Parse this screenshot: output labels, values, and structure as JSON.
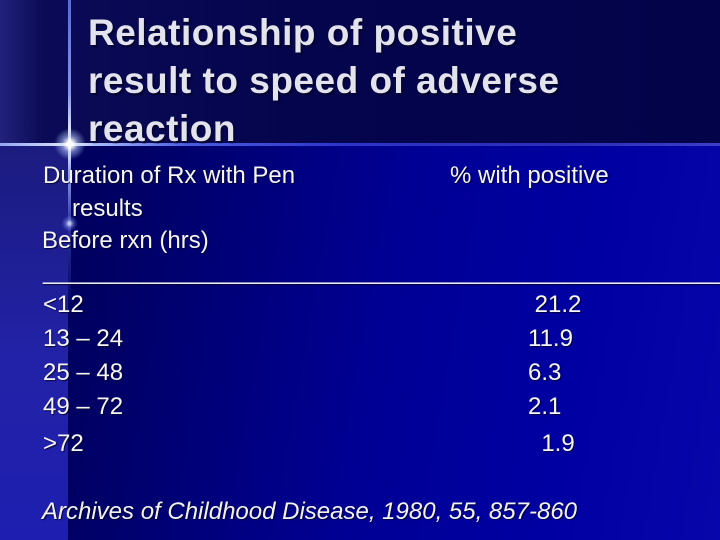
{
  "slide": {
    "title": "Relationship of positive\nresult to speed of adverse\nreaction",
    "table": {
      "left_header_line1": "Duration of Rx with Pen",
      "left_header_line2": "results",
      "left_header_line3": "Before rxn (hrs)",
      "right_header": "% with positive",
      "divider": "___________________________________________________",
      "rows": [
        {
          "duration": "<12",
          "percent": " 21.2"
        },
        {
          "duration": "13 – 24",
          "percent": "11.9"
        },
        {
          "duration": "25 – 48",
          "percent": "6.3"
        },
        {
          "duration": "49 – 72",
          "percent": "2.1"
        },
        {
          "duration": ">72",
          "percent": "  1.9"
        }
      ]
    },
    "citation": "Archives of Childhood Disease, 1980, 55, 857-860",
    "colors": {
      "background_navy": "#000095",
      "background_dark_band": "#000060",
      "background_top_band": "#05054e",
      "left_column_blue": "#2222a8",
      "accent_line": "#aabcff",
      "cross_glow": "#ffffff",
      "title_text": "#e3e3ed",
      "body_text": "#f6f6f8"
    }
  },
  "chart_data": {
    "type": "table",
    "title": "Relationship of positive result to speed of adverse reaction",
    "columns": [
      "Duration of Rx with Pen results Before rxn (hrs)",
      "% with positive"
    ],
    "categories": [
      "<12",
      "13 – 24",
      "25 – 48",
      "49 – 72",
      ">72"
    ],
    "values": [
      21.2,
      11.9,
      6.3,
      2.1,
      1.9
    ],
    "source": "Archives of Childhood Disease, 1980, 55, 857-860"
  }
}
